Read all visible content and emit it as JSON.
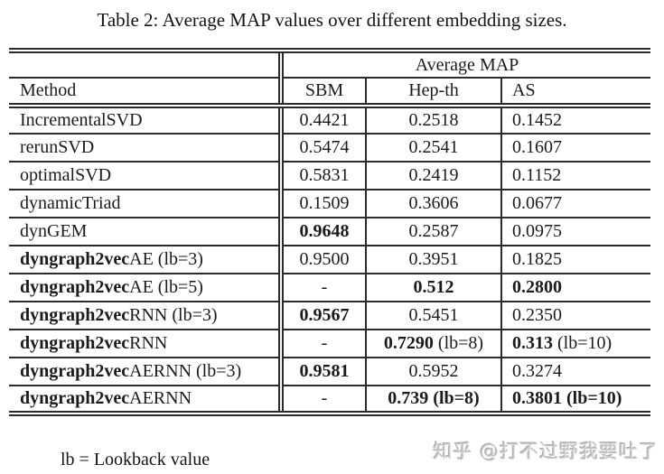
{
  "title": "Table 2: Average MAP values over different embedding sizes.",
  "table": {
    "group_header": "Average MAP",
    "columns": [
      "Method",
      "SBM",
      "Hep-th",
      "AS"
    ],
    "rows": [
      {
        "cells": [
          [
            {
              "t": "IncrementalSVD"
            }
          ],
          [
            {
              "t": "0.4421"
            }
          ],
          [
            {
              "t": "0.2518"
            }
          ],
          [
            {
              "t": "0.1452"
            }
          ]
        ]
      },
      {
        "cells": [
          [
            {
              "t": "rerunSVD"
            }
          ],
          [
            {
              "t": "0.5474"
            }
          ],
          [
            {
              "t": "0.2541"
            }
          ],
          [
            {
              "t": "0.1607"
            }
          ]
        ]
      },
      {
        "cells": [
          [
            {
              "t": "optimalSVD"
            }
          ],
          [
            {
              "t": "0.5831"
            }
          ],
          [
            {
              "t": "0.2419"
            }
          ],
          [
            {
              "t": "0.1152"
            }
          ]
        ]
      },
      {
        "cells": [
          [
            {
              "t": "dynamicTriad"
            }
          ],
          [
            {
              "t": "0.1509"
            }
          ],
          [
            {
              "t": "0.3606"
            }
          ],
          [
            {
              "t": "0.0677"
            }
          ]
        ]
      },
      {
        "cells": [
          [
            {
              "t": "dynGEM"
            }
          ],
          [
            {
              "t": "0.9648",
              "b": true
            }
          ],
          [
            {
              "t": "0.2587"
            }
          ],
          [
            {
              "t": "0.0975"
            }
          ]
        ]
      },
      {
        "cells": [
          [
            {
              "t": "dyngraph2vec",
              "b": true
            },
            {
              "t": "AE (lb=3)"
            }
          ],
          [
            {
              "t": "0.9500"
            }
          ],
          [
            {
              "t": "0.3951"
            }
          ],
          [
            {
              "t": "0.1825"
            }
          ]
        ]
      },
      {
        "cells": [
          [
            {
              "t": "dyngraph2vec",
              "b": true
            },
            {
              "t": "AE (lb=5)"
            }
          ],
          [
            {
              "t": "-"
            }
          ],
          [
            {
              "t": "0.512",
              "b": true
            }
          ],
          [
            {
              "t": "0.2800",
              "b": true
            }
          ]
        ]
      },
      {
        "cells": [
          [
            {
              "t": "dyngraph2vec",
              "b": true
            },
            {
              "t": "RNN (lb=3)"
            }
          ],
          [
            {
              "t": "0.9567",
              "b": true
            }
          ],
          [
            {
              "t": "0.5451"
            }
          ],
          [
            {
              "t": "0.2350"
            }
          ]
        ]
      },
      {
        "cells": [
          [
            {
              "t": "dyngraph2vec",
              "b": true
            },
            {
              "t": "RNN"
            }
          ],
          [
            {
              "t": "-"
            }
          ],
          [
            {
              "t": "0.7290",
              "b": true
            },
            {
              "t": " (lb=8)"
            }
          ],
          [
            {
              "t": "0.313",
              "b": true
            },
            {
              "t": " (lb=10)"
            }
          ]
        ]
      },
      {
        "cells": [
          [
            {
              "t": "dyngraph2vec",
              "b": true
            },
            {
              "t": "AERNN (lb=3)"
            }
          ],
          [
            {
              "t": "0.9581",
              "b": true
            }
          ],
          [
            {
              "t": "0.5952"
            }
          ],
          [
            {
              "t": "0.3274"
            }
          ]
        ]
      },
      {
        "cells": [
          [
            {
              "t": "dyngraph2vec",
              "b": true
            },
            {
              "t": "AERNN"
            }
          ],
          [
            {
              "t": "-"
            }
          ],
          [
            {
              "t": "0.739 (lb=8)",
              "b": true
            }
          ],
          [
            {
              "t": "0.3801 (lb=10)",
              "b": true
            }
          ]
        ]
      }
    ]
  },
  "footnote": "lb = Lookback value",
  "watermark": "知乎 @打不过野我要吐了"
}
